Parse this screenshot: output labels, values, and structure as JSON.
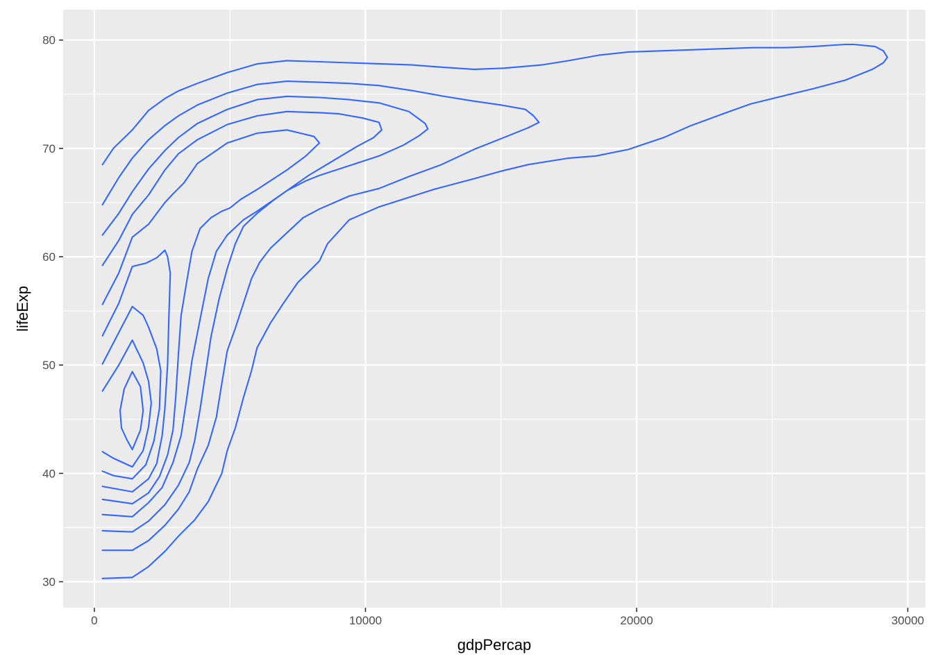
{
  "chart_data": {
    "type": "contour",
    "title": "",
    "xlabel": "gdpPercap",
    "ylabel": "lifeExp",
    "xlim": [
      -1150,
      30650
    ],
    "ylim": [
      27.6,
      82.8
    ],
    "xticks": [
      0,
      10000,
      20000,
      30000
    ],
    "yticks": [
      30,
      40,
      50,
      60,
      70,
      80
    ],
    "xtick_labels": [
      "0",
      "10000",
      "20000",
      "30000"
    ],
    "ytick_labels": [
      "30",
      "40",
      "50",
      "60",
      "70",
      "80"
    ],
    "grid": true,
    "legend": "none",
    "colors": {
      "panel": "#ebebeb",
      "grid": "#ffffff",
      "line": "#3366ff",
      "tick": "#333333"
    },
    "series": [
      {
        "points": [
          [
            300,
            30.3
          ],
          [
            1400,
            30.4
          ],
          [
            2000,
            31.4
          ],
          [
            2600,
            32.8
          ],
          [
            3100,
            34.2
          ],
          [
            3700,
            35.7
          ],
          [
            4200,
            37.4
          ],
          [
            4700,
            40.0
          ],
          [
            4900,
            42.1
          ],
          [
            5200,
            44.2
          ],
          [
            5500,
            47.0
          ],
          [
            5800,
            49.5
          ],
          [
            6000,
            51.6
          ],
          [
            6500,
            53.9
          ],
          [
            7000,
            55.8
          ],
          [
            7500,
            57.6
          ],
          [
            8300,
            59.6
          ],
          [
            8600,
            61.2
          ],
          [
            9400,
            63.4
          ],
          [
            10500,
            64.6
          ],
          [
            11500,
            65.4
          ],
          [
            12500,
            66.2
          ],
          [
            14000,
            67.2
          ],
          [
            15000,
            67.9
          ],
          [
            16000,
            68.5
          ],
          [
            17500,
            69.1
          ],
          [
            18500,
            69.3
          ],
          [
            19700,
            69.9
          ],
          [
            21000,
            71.0
          ],
          [
            22000,
            72.1
          ],
          [
            23200,
            73.2
          ],
          [
            24200,
            74.1
          ],
          [
            25500,
            74.9
          ],
          [
            26500,
            75.5
          ],
          [
            27700,
            76.3
          ],
          [
            28700,
            77.3
          ],
          [
            29100,
            77.9
          ],
          [
            29250,
            78.4
          ],
          [
            29100,
            79.0
          ],
          [
            28800,
            79.4
          ],
          [
            28000,
            79.6
          ],
          [
            27700,
            79.6
          ],
          [
            26500,
            79.4
          ],
          [
            25500,
            79.3
          ],
          [
            24300,
            79.3
          ],
          [
            23200,
            79.2
          ],
          [
            22000,
            79.1
          ],
          [
            20900,
            79.0
          ],
          [
            19700,
            78.9
          ],
          [
            18600,
            78.6
          ],
          [
            17500,
            78.1
          ],
          [
            16500,
            77.7
          ],
          [
            15100,
            77.4
          ],
          [
            14000,
            77.3
          ],
          [
            12800,
            77.5
          ],
          [
            11700,
            77.7
          ],
          [
            10600,
            77.8
          ],
          [
            9400,
            77.9
          ],
          [
            8300,
            78.0
          ],
          [
            7100,
            78.1
          ],
          [
            6000,
            77.8
          ],
          [
            4900,
            77.0
          ],
          [
            3800,
            76.0
          ],
          [
            3100,
            75.3
          ],
          [
            2600,
            74.6
          ],
          [
            2000,
            73.5
          ],
          [
            1400,
            71.7
          ],
          [
            700,
            70.0
          ],
          [
            300,
            68.5
          ]
        ]
      },
      {
        "points": [
          [
            300,
            32.9
          ],
          [
            1400,
            32.9
          ],
          [
            2000,
            33.8
          ],
          [
            2600,
            35.2
          ],
          [
            3100,
            36.7
          ],
          [
            3500,
            38.3
          ],
          [
            3800,
            40.4
          ],
          [
            4200,
            42.6
          ],
          [
            4500,
            45.2
          ],
          [
            4700,
            48.3
          ],
          [
            4900,
            51.3
          ],
          [
            5200,
            53.4
          ],
          [
            5500,
            55.7
          ],
          [
            5800,
            58.0
          ],
          [
            6100,
            59.5
          ],
          [
            6500,
            60.8
          ],
          [
            7100,
            62.2
          ],
          [
            7700,
            63.6
          ],
          [
            8300,
            64.4
          ],
          [
            9400,
            65.6
          ],
          [
            10500,
            66.3
          ],
          [
            11600,
            67.4
          ],
          [
            12800,
            68.5
          ],
          [
            14000,
            69.9
          ],
          [
            15100,
            71.0
          ],
          [
            16000,
            71.9
          ],
          [
            16400,
            72.4
          ],
          [
            16200,
            73.0
          ],
          [
            15900,
            73.6
          ],
          [
            15000,
            74.0
          ],
          [
            13900,
            74.4
          ],
          [
            12900,
            74.8
          ],
          [
            11800,
            75.3
          ],
          [
            10500,
            75.8
          ],
          [
            9400,
            76.0
          ],
          [
            8300,
            76.1
          ],
          [
            7100,
            76.2
          ],
          [
            6000,
            75.9
          ],
          [
            4900,
            75.1
          ],
          [
            3800,
            74.0
          ],
          [
            3100,
            73.0
          ],
          [
            2600,
            72.1
          ],
          [
            2000,
            70.8
          ],
          [
            1400,
            69.1
          ],
          [
            900,
            67.3
          ],
          [
            300,
            64.8
          ]
        ]
      },
      {
        "points": [
          [
            300,
            34.7
          ],
          [
            1400,
            34.6
          ],
          [
            2000,
            35.6
          ],
          [
            2600,
            37.1
          ],
          [
            3100,
            38.9
          ],
          [
            3500,
            41.0
          ],
          [
            3700,
            43.0
          ],
          [
            3900,
            45.9
          ],
          [
            4100,
            49.2
          ],
          [
            4300,
            52.6
          ],
          [
            4600,
            56.1
          ],
          [
            4900,
            58.9
          ],
          [
            5200,
            61.2
          ],
          [
            5500,
            62.8
          ],
          [
            6000,
            64.0
          ],
          [
            6600,
            65.2
          ],
          [
            7100,
            66.1
          ],
          [
            7800,
            67.0
          ],
          [
            8300,
            67.5
          ],
          [
            9400,
            68.4
          ],
          [
            10500,
            69.3
          ],
          [
            11400,
            70.3
          ],
          [
            12000,
            71.2
          ],
          [
            12300,
            71.8
          ],
          [
            12200,
            72.3
          ],
          [
            11600,
            73.4
          ],
          [
            10500,
            74.2
          ],
          [
            9400,
            74.5
          ],
          [
            8300,
            74.7
          ],
          [
            7100,
            74.8
          ],
          [
            6000,
            74.5
          ],
          [
            4900,
            73.6
          ],
          [
            3800,
            72.3
          ],
          [
            3100,
            71.0
          ],
          [
            2600,
            69.8
          ],
          [
            2000,
            68.1
          ],
          [
            1400,
            66.0
          ],
          [
            900,
            64.0
          ],
          [
            300,
            62.0
          ]
        ]
      },
      {
        "points": [
          [
            300,
            36.2
          ],
          [
            1400,
            36.0
          ],
          [
            2000,
            37.3
          ],
          [
            2500,
            38.7
          ],
          [
            2900,
            41.0
          ],
          [
            3200,
            43.5
          ],
          [
            3400,
            46.8
          ],
          [
            3600,
            50.4
          ],
          [
            3900,
            54.2
          ],
          [
            4200,
            58.0
          ],
          [
            4500,
            60.5
          ],
          [
            4900,
            62.0
          ],
          [
            5500,
            63.4
          ],
          [
            6000,
            64.2
          ],
          [
            6700,
            65.4
          ],
          [
            7100,
            66.1
          ],
          [
            7900,
            67.5
          ],
          [
            8700,
            68.7
          ],
          [
            9700,
            70.2
          ],
          [
            10300,
            71.0
          ],
          [
            10600,
            71.7
          ],
          [
            10500,
            72.4
          ],
          [
            9900,
            72.8
          ],
          [
            9000,
            73.2
          ],
          [
            8300,
            73.3
          ],
          [
            7100,
            73.4
          ],
          [
            6000,
            73.0
          ],
          [
            4900,
            72.2
          ],
          [
            3800,
            70.8
          ],
          [
            3100,
            69.5
          ],
          [
            2600,
            68.0
          ],
          [
            2000,
            65.7
          ],
          [
            1400,
            63.9
          ],
          [
            900,
            61.5
          ],
          [
            300,
            59.2
          ]
        ]
      },
      {
        "points": [
          [
            300,
            37.6
          ],
          [
            1400,
            37.2
          ],
          [
            2000,
            38.2
          ],
          [
            2400,
            39.7
          ],
          [
            2700,
            41.7
          ],
          [
            2900,
            44.0
          ],
          [
            3000,
            47.0
          ],
          [
            3100,
            51.0
          ],
          [
            3200,
            54.6
          ],
          [
            3400,
            57.6
          ],
          [
            3600,
            60.5
          ],
          [
            3900,
            62.6
          ],
          [
            4300,
            63.6
          ],
          [
            4700,
            64.2
          ],
          [
            5000,
            64.5
          ],
          [
            5400,
            65.3
          ],
          [
            6000,
            66.2
          ],
          [
            7100,
            68.0
          ],
          [
            7800,
            69.3
          ],
          [
            8300,
            70.5
          ],
          [
            8100,
            71.1
          ],
          [
            7600,
            71.4
          ],
          [
            7100,
            71.7
          ],
          [
            6000,
            71.4
          ],
          [
            4900,
            70.5
          ],
          [
            3800,
            68.6
          ],
          [
            3300,
            66.8
          ],
          [
            2900,
            65.8
          ],
          [
            2600,
            65.0
          ],
          [
            2000,
            63.0
          ],
          [
            1400,
            61.8
          ],
          [
            900,
            58.5
          ],
          [
            300,
            55.6
          ]
        ]
      },
      {
        "points": [
          [
            300,
            38.8
          ],
          [
            1400,
            38.3
          ],
          [
            2000,
            39.5
          ],
          [
            2300,
            40.9
          ],
          [
            2500,
            43.5
          ],
          [
            2600,
            46.0
          ],
          [
            2700,
            50.0
          ],
          [
            2750,
            54.5
          ],
          [
            2800,
            58.5
          ],
          [
            2700,
            60.0
          ],
          [
            2600,
            60.6
          ],
          [
            2300,
            59.9
          ],
          [
            1900,
            59.4
          ],
          [
            1400,
            59.1
          ],
          [
            900,
            55.7
          ],
          [
            300,
            52.7
          ]
        ]
      },
      {
        "points": [
          [
            300,
            40.2
          ],
          [
            700,
            39.8
          ],
          [
            1400,
            39.5
          ],
          [
            1900,
            40.8
          ],
          [
            2200,
            43.0
          ],
          [
            2400,
            46.0
          ],
          [
            2450,
            49.5
          ],
          [
            2300,
            51.5
          ],
          [
            2000,
            53.5
          ],
          [
            1800,
            54.6
          ],
          [
            1400,
            55.4
          ],
          [
            900,
            53.0
          ],
          [
            300,
            50.1
          ]
        ]
      },
      {
        "points": [
          [
            300,
            42.0
          ],
          [
            700,
            41.4
          ],
          [
            1400,
            40.6
          ],
          [
            1800,
            42.1
          ],
          [
            2000,
            44.3
          ],
          [
            2100,
            46.5
          ],
          [
            2000,
            48.5
          ],
          [
            1800,
            50.2
          ],
          [
            1400,
            52.3
          ],
          [
            900,
            50.0
          ],
          [
            300,
            47.6
          ]
        ]
      },
      {
        "points": [
          [
            1400,
            42.2
          ],
          [
            1700,
            44.0
          ],
          [
            1800,
            45.8
          ],
          [
            1700,
            48.0
          ],
          [
            1400,
            49.4
          ],
          [
            1100,
            47.8
          ],
          [
            950,
            45.8
          ],
          [
            1000,
            44.2
          ],
          [
            1200,
            43.1
          ],
          [
            1400,
            42.2
          ]
        ]
      }
    ]
  }
}
